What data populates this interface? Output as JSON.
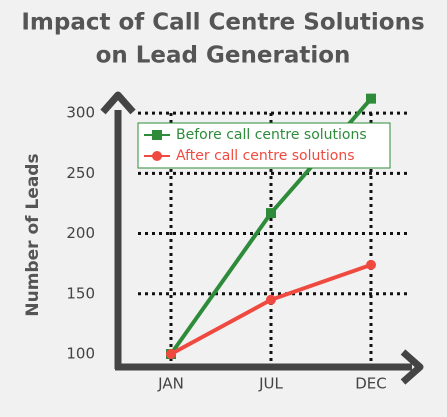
{
  "chart_data": {
    "type": "line",
    "title": "Impact of Call Centre Solutions",
    "subtitle": "on Lead Generation",
    "y_label": "Number of Leads",
    "categories": [
      "JAN",
      "JUL",
      "DEC"
    ],
    "series": [
      {
        "name": "Before call centre solutions",
        "color": "#2e8b3a",
        "marker": "square",
        "values": [
          100,
          217,
          312
        ]
      },
      {
        "name": "After call centre solutions",
        "color": "#f04a40",
        "marker": "circle",
        "values": [
          100,
          145,
          174
        ]
      }
    ],
    "ylim": [
      100,
      320
    ],
    "yticks": [
      100,
      150,
      200,
      250,
      300
    ],
    "grid": true,
    "legend": "top-left"
  }
}
